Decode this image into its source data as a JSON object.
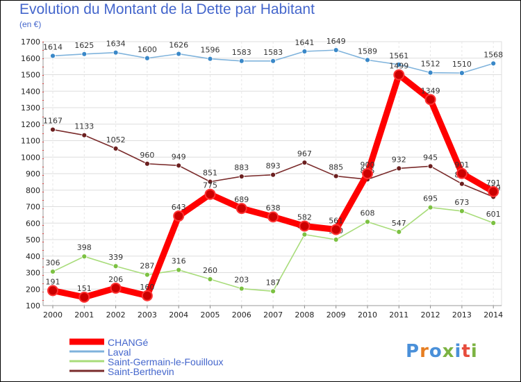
{
  "title": "Evolution du Montant de la Dette par Habitant",
  "subtitle": "(en €)",
  "logo": {
    "text": "Proxiti",
    "colors": [
      "#4a90d9",
      "#e67e22",
      "#4a90d9",
      "#7cb342",
      "#4a90d9",
      "#e74c3c",
      "#7cb342"
    ]
  },
  "chart_data": {
    "type": "line",
    "title": "Evolution du Montant de la Dette par Habitant",
    "ylabel": "(en €)",
    "xlabel": "",
    "x": [
      "2000",
      "2001",
      "2002",
      "2003",
      "2004",
      "2005",
      "2006",
      "2007",
      "2008",
      "2009",
      "2010",
      "2011",
      "2012",
      "2013",
      "2014"
    ],
    "ylim": [
      100,
      1700
    ],
    "yticks": [
      100,
      200,
      300,
      400,
      500,
      600,
      700,
      800,
      900,
      1000,
      1100,
      1200,
      1300,
      1400,
      1500,
      1600,
      1700
    ],
    "grid": true,
    "legend_position": "bottom-left",
    "series": [
      {
        "name": "CHANGé",
        "color": "#ff0000",
        "point_color": "#cc0000",
        "thick": true,
        "values": [
          191,
          151,
          206,
          160,
          643,
          775,
          689,
          638,
          582,
          561,
          900,
          1499,
          1349,
          901,
          791
        ]
      },
      {
        "name": "Laval",
        "color": "#7fb3dc",
        "point_color": "#3a88c8",
        "thick": false,
        "values": [
          1614,
          1625,
          1634,
          1600,
          1626,
          1596,
          1583,
          1583,
          1641,
          1649,
          1589,
          1561,
          1512,
          1510,
          1568
        ]
      },
      {
        "name": "Saint-Germain-le-Fouilloux",
        "color": "#a8dc7a",
        "point_color": "#7cc142",
        "thick": false,
        "values": [
          306,
          398,
          339,
          287,
          316,
          260,
          203,
          187,
          531,
          500,
          608,
          547,
          695,
          673,
          601
        ]
      },
      {
        "name": "Saint-Berthevin",
        "color": "#7a2b2b",
        "point_color": "#6b1f1f",
        "thick": false,
        "values": [
          1167,
          1133,
          1052,
          960,
          949,
          851,
          883,
          893,
          967,
          885,
          865,
          932,
          945,
          838,
          759
        ]
      }
    ]
  }
}
